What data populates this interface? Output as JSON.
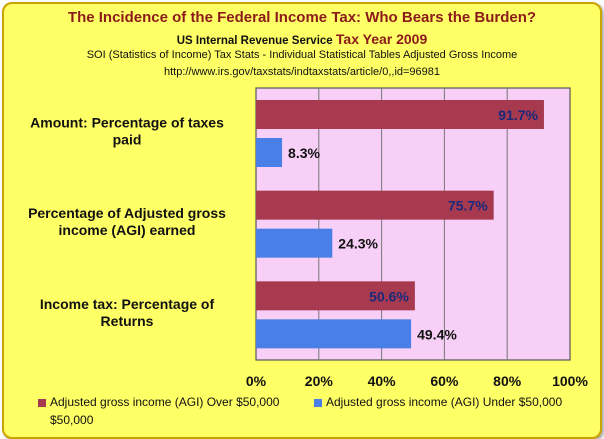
{
  "title": "The Incidence of the Federal Income Tax: Who Bears the Burden?",
  "subtitle1_prefix": "US Internal Revenue Service",
  "subtitle1_year": "Tax Year 2009",
  "subtitle2": "SOI (Statistics of Income) Tax Stats - Individual Statistical Tables  Adjusted Gross Income",
  "subtitle3": "http://www.irs.gov/taxstats/indtaxstats/article/0,,id=96981",
  "colors": {
    "over": "#a83a50",
    "under": "#4a7fe8",
    "plot_bg": "#f7cff7",
    "frame_bg": "#ffff66",
    "label_over": "#1a2a7a"
  },
  "chart_data": {
    "type": "bar",
    "orientation": "horizontal",
    "categories": [
      [
        "Amount:  Percentage of taxes",
        "paid"
      ],
      [
        "Percentage of Adjusted gross",
        "income (AGI) earned"
      ],
      [
        "Income tax: Percentage of",
        "Returns"
      ]
    ],
    "series": [
      {
        "name": "Adjusted gross income (AGI) Over $50,000",
        "values": [
          91.7,
          75.7,
          50.6
        ],
        "labels": [
          "91.7%",
          "75.7%",
          "50.6%"
        ]
      },
      {
        "name": "Adjusted gross income (AGI) Under $50,000",
        "values": [
          8.3,
          24.3,
          49.4
        ],
        "labels": [
          "8.3%",
          "24.3%",
          "49.4%"
        ]
      }
    ],
    "xlim": [
      0,
      100
    ],
    "xticks": [
      "0%",
      "20%",
      "40%",
      "60%",
      "80%",
      "100%"
    ],
    "grid": true,
    "legend_position": "bottom"
  },
  "legend": {
    "over_label": "Adjusted gross income (AGI) Over $50,000",
    "under_label": "Adjusted gross income (AGI) Under $50,000",
    "wrap_text": "$50,000"
  }
}
